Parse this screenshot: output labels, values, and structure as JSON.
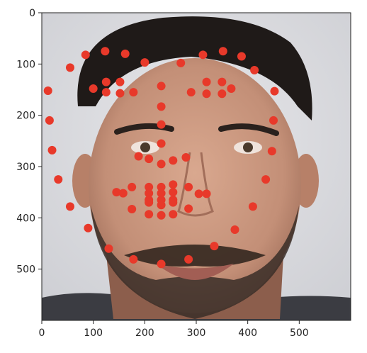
{
  "chart_data": {
    "type": "scatter",
    "background": "portrait photograph of a bearded man's face",
    "xlim": [
      0,
      600
    ],
    "ylim": [
      600,
      0
    ],
    "x_ticks": [
      0,
      100,
      200,
      300,
      400,
      500
    ],
    "y_ticks": [
      0,
      100,
      200,
      300,
      400,
      500
    ],
    "grid": false,
    "marker_color": "#e8392a",
    "series": [
      {
        "points": [
          [
            85,
            82
          ],
          [
            123,
            75
          ],
          [
            162,
            80
          ],
          [
            200,
            97
          ],
          [
            270,
            98
          ],
          [
            313,
            82
          ],
          [
            352,
            75
          ],
          [
            388,
            85
          ],
          [
            413,
            112
          ],
          [
            55,
            107
          ],
          [
            12,
            152
          ],
          [
            100,
            148
          ],
          [
            125,
            155
          ],
          [
            125,
            135
          ],
          [
            152,
            157
          ],
          [
            152,
            135
          ],
          [
            178,
            155
          ],
          [
            232,
            143
          ],
          [
            232,
            183
          ],
          [
            290,
            155
          ],
          [
            320,
            158
          ],
          [
            320,
            135
          ],
          [
            350,
            135
          ],
          [
            350,
            158
          ],
          [
            368,
            148
          ],
          [
            452,
            153
          ],
          [
            450,
            210
          ],
          [
            15,
            210
          ],
          [
            20,
            268
          ],
          [
            447,
            270
          ],
          [
            32,
            325
          ],
          [
            435,
            325
          ],
          [
            55,
            378
          ],
          [
            90,
            420
          ],
          [
            130,
            460
          ],
          [
            178,
            481
          ],
          [
            232,
            490
          ],
          [
            285,
            481
          ],
          [
            335,
            455
          ],
          [
            375,
            423
          ],
          [
            410,
            378
          ],
          [
            188,
            280
          ],
          [
            208,
            285
          ],
          [
            232,
            295
          ],
          [
            255,
            288
          ],
          [
            280,
            282
          ],
          [
            232,
            255
          ],
          [
            232,
            218
          ],
          [
            145,
            350
          ],
          [
            158,
            352
          ],
          [
            175,
            340
          ],
          [
            208,
            340
          ],
          [
            208,
            352
          ],
          [
            208,
            365
          ],
          [
            232,
            340
          ],
          [
            232,
            352
          ],
          [
            232,
            365
          ],
          [
            255,
            335
          ],
          [
            255,
            350
          ],
          [
            255,
            365
          ],
          [
            285,
            340
          ],
          [
            305,
            353
          ],
          [
            320,
            353
          ],
          [
            175,
            383
          ],
          [
            208,
            393
          ],
          [
            232,
            395
          ],
          [
            255,
            393
          ],
          [
            285,
            382
          ],
          [
            208,
            370
          ],
          [
            232,
            375
          ],
          [
            255,
            370
          ]
        ]
      }
    ]
  }
}
